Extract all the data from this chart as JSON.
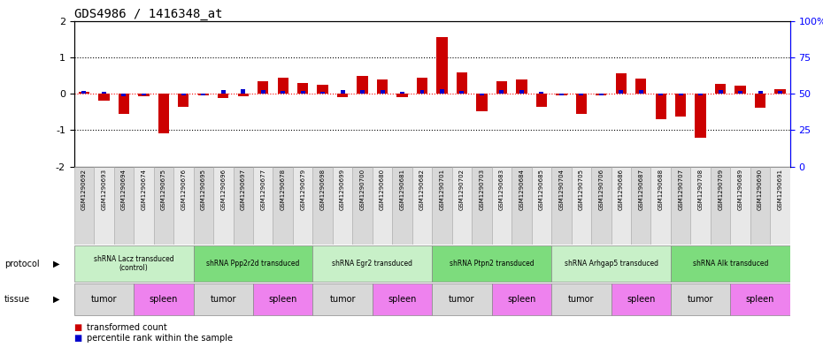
{
  "title": "GDS4986 / 1416348_at",
  "samples": [
    "GSM1290692",
    "GSM1290693",
    "GSM1290694",
    "GSM1290674",
    "GSM1290675",
    "GSM1290676",
    "GSM1290695",
    "GSM1290696",
    "GSM1290697",
    "GSM1290677",
    "GSM1290678",
    "GSM1290679",
    "GSM1290698",
    "GSM1290699",
    "GSM1290700",
    "GSM1290680",
    "GSM1290681",
    "GSM1290682",
    "GSM1290701",
    "GSM1290702",
    "GSM1290703",
    "GSM1290683",
    "GSM1290684",
    "GSM1290685",
    "GSM1290704",
    "GSM1290705",
    "GSM1290706",
    "GSM1290686",
    "GSM1290687",
    "GSM1290688",
    "GSM1290707",
    "GSM1290708",
    "GSM1290709",
    "GSM1290689",
    "GSM1290690",
    "GSM1290691"
  ],
  "red_values": [
    0.05,
    -0.2,
    -0.55,
    -0.08,
    -1.08,
    -0.35,
    -0.05,
    -0.12,
    -0.08,
    0.35,
    0.45,
    0.3,
    0.25,
    -0.1,
    0.48,
    0.38,
    -0.1,
    0.45,
    1.55,
    0.58,
    -0.48,
    0.35,
    0.38,
    -0.35,
    -0.05,
    -0.55,
    -0.05,
    0.55,
    0.42,
    -0.7,
    -0.62,
    -1.2,
    0.28,
    0.22,
    -0.38,
    0.12
  ],
  "blue_values": [
    0.08,
    0.05,
    -0.08,
    -0.05,
    0.0,
    -0.05,
    -0.05,
    0.1,
    0.12,
    0.1,
    0.08,
    0.08,
    0.05,
    0.1,
    0.1,
    0.1,
    0.05,
    0.1,
    0.12,
    0.08,
    -0.05,
    0.1,
    0.1,
    0.05,
    -0.05,
    -0.05,
    -0.05,
    0.1,
    0.1,
    -0.05,
    -0.05,
    -0.05,
    0.1,
    0.08,
    0.08,
    0.08
  ],
  "protocols": [
    {
      "label": "shRNA Lacz transduced\n(control)",
      "start": 0,
      "end": 6,
      "color": "#c8f0c8"
    },
    {
      "label": "shRNA Ppp2r2d transduced",
      "start": 6,
      "end": 12,
      "color": "#7ddc7d"
    },
    {
      "label": "shRNA Egr2 transduced",
      "start": 12,
      "end": 18,
      "color": "#c8f0c8"
    },
    {
      "label": "shRNA Ptpn2 transduced",
      "start": 18,
      "end": 24,
      "color": "#7ddc7d"
    },
    {
      "label": "shRNA Arhgap5 transduced",
      "start": 24,
      "end": 30,
      "color": "#c8f0c8"
    },
    {
      "label": "shRNA Alk transduced",
      "start": 30,
      "end": 36,
      "color": "#7ddc7d"
    }
  ],
  "tissues": [
    {
      "label": "tumor",
      "start": 0,
      "end": 3,
      "color": "#d8d8d8"
    },
    {
      "label": "spleen",
      "start": 3,
      "end": 6,
      "color": "#ee82ee"
    },
    {
      "label": "tumor",
      "start": 6,
      "end": 9,
      "color": "#d8d8d8"
    },
    {
      "label": "spleen",
      "start": 9,
      "end": 12,
      "color": "#ee82ee"
    },
    {
      "label": "tumor",
      "start": 12,
      "end": 15,
      "color": "#d8d8d8"
    },
    {
      "label": "spleen",
      "start": 15,
      "end": 18,
      "color": "#ee82ee"
    },
    {
      "label": "tumor",
      "start": 18,
      "end": 21,
      "color": "#d8d8d8"
    },
    {
      "label": "spleen",
      "start": 21,
      "end": 24,
      "color": "#ee82ee"
    },
    {
      "label": "tumor",
      "start": 24,
      "end": 27,
      "color": "#d8d8d8"
    },
    {
      "label": "spleen",
      "start": 27,
      "end": 30,
      "color": "#ee82ee"
    },
    {
      "label": "tumor",
      "start": 30,
      "end": 33,
      "color": "#d8d8d8"
    },
    {
      "label": "spleen",
      "start": 33,
      "end": 36,
      "color": "#ee82ee"
    }
  ],
  "ylim": [
    -2,
    2
  ],
  "y2lim": [
    0,
    100
  ],
  "yticks": [
    -2,
    -1,
    0,
    1,
    2
  ],
  "y2ticks": [
    0,
    25,
    50,
    75,
    100
  ],
  "hlines": [
    -1,
    0,
    1
  ],
  "red_color": "#cc0000",
  "blue_color": "#0000cc",
  "red_label": "transformed count",
  "blue_label": "percentile rank within the sample",
  "sample_box_colors": [
    "#d8d8d8",
    "#e8e8e8"
  ]
}
